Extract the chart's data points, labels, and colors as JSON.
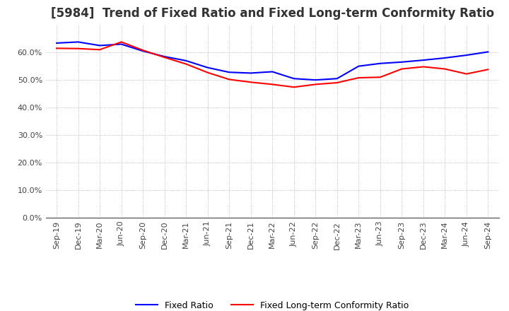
{
  "title": "[5984]  Trend of Fixed Ratio and Fixed Long-term Conformity Ratio",
  "x_labels": [
    "Sep-19",
    "Dec-19",
    "Mar-20",
    "Jun-20",
    "Sep-20",
    "Dec-20",
    "Mar-21",
    "Jun-21",
    "Sep-21",
    "Dec-21",
    "Mar-22",
    "Jun-22",
    "Sep-22",
    "Dec-22",
    "Mar-23",
    "Jun-23",
    "Sep-23",
    "Dec-23",
    "Mar-24",
    "Jun-24",
    "Sep-24"
  ],
  "fixed_ratio": [
    0.634,
    0.638,
    0.625,
    0.63,
    0.605,
    0.585,
    0.57,
    0.545,
    0.528,
    0.525,
    0.53,
    0.505,
    0.5,
    0.505,
    0.55,
    0.56,
    0.565,
    0.572,
    0.58,
    0.59,
    0.602
  ],
  "fixed_lt_ratio": [
    0.615,
    0.614,
    0.61,
    0.638,
    0.608,
    0.582,
    0.558,
    0.527,
    0.502,
    0.492,
    0.484,
    0.474,
    0.484,
    0.49,
    0.508,
    0.51,
    0.54,
    0.548,
    0.54,
    0.522,
    0.538
  ],
  "fixed_ratio_color": "#0000FF",
  "fixed_lt_ratio_color": "#FF0000",
  "ylim": [
    0.0,
    0.7
  ],
  "yticks": [
    0.0,
    0.1,
    0.2,
    0.3,
    0.4,
    0.5,
    0.6
  ],
  "background_color": "#FFFFFF",
  "grid_color": "#AAAAAA",
  "title_fontsize": 12,
  "legend_fixed": "Fixed Ratio",
  "legend_fixed_lt": "Fixed Long-term Conformity Ratio"
}
